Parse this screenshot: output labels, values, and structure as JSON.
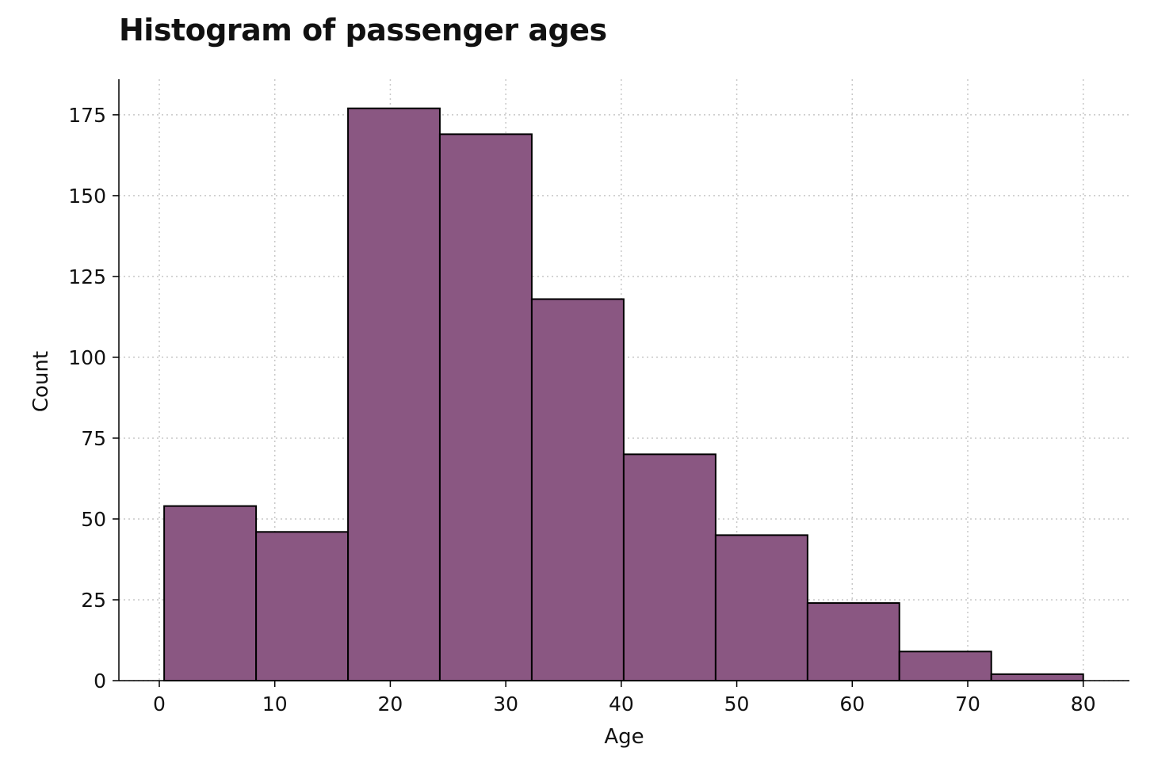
{
  "chart_data": {
    "type": "bar",
    "title": "Histogram of passenger ages",
    "xlabel": "Age",
    "ylabel": "Count",
    "bin_edges": [
      0.42,
      8.38,
      16.34,
      24.29,
      32.25,
      40.21,
      48.17,
      56.13,
      64.08,
      72.04,
      80.0
    ],
    "values": [
      54,
      46,
      177,
      169,
      118,
      70,
      45,
      24,
      9,
      2
    ],
    "xlim": [
      -3.5,
      84.0
    ],
    "ylim": [
      0,
      186
    ],
    "x_ticks": [
      0,
      10,
      20,
      30,
      40,
      50,
      60,
      70,
      80
    ],
    "y_ticks": [
      0,
      25,
      50,
      75,
      100,
      125,
      150,
      175
    ],
    "grid": true,
    "bar_color": "#8a5782",
    "edge_color": "#000000"
  }
}
